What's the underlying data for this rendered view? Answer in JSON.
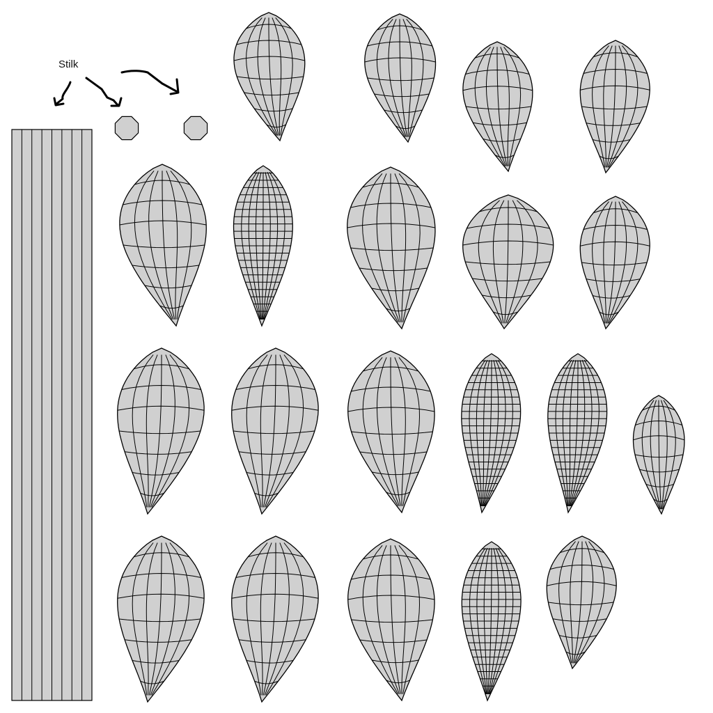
{
  "annotation": {
    "label": "Stilk"
  },
  "style": {
    "fill": "#d0d0d0",
    "stroke": "#000000",
    "background": "#ffffff"
  },
  "stem": {
    "strip_count": 8
  },
  "pieces": [
    {
      "name": "uv-shell-r1-1",
      "mesh": "coarse"
    },
    {
      "name": "uv-shell-r1-2",
      "mesh": "coarse"
    },
    {
      "name": "uv-shell-r1-3",
      "mesh": "coarse"
    },
    {
      "name": "uv-shell-r1-4",
      "mesh": "coarse"
    },
    {
      "name": "uv-shell-r2-1",
      "mesh": "coarse"
    },
    {
      "name": "uv-shell-r2-2",
      "mesh": "dense"
    },
    {
      "name": "uv-shell-r2-3",
      "mesh": "coarse"
    },
    {
      "name": "uv-shell-r2-4",
      "mesh": "coarse"
    },
    {
      "name": "uv-shell-r2-5",
      "mesh": "coarse"
    },
    {
      "name": "uv-shell-r3-1",
      "mesh": "coarse"
    },
    {
      "name": "uv-shell-r3-2",
      "mesh": "coarse"
    },
    {
      "name": "uv-shell-r3-3",
      "mesh": "coarse"
    },
    {
      "name": "uv-shell-r3-4",
      "mesh": "dense"
    },
    {
      "name": "uv-shell-r3-5",
      "mesh": "dense"
    },
    {
      "name": "uv-shell-r3-6",
      "mesh": "coarse"
    },
    {
      "name": "uv-shell-r4-1",
      "mesh": "coarse"
    },
    {
      "name": "uv-shell-r4-2",
      "mesh": "coarse"
    },
    {
      "name": "uv-shell-r4-3",
      "mesh": "coarse"
    },
    {
      "name": "uv-shell-r4-4",
      "mesh": "dense"
    },
    {
      "name": "uv-shell-r4-5",
      "mesh": "coarse"
    }
  ]
}
